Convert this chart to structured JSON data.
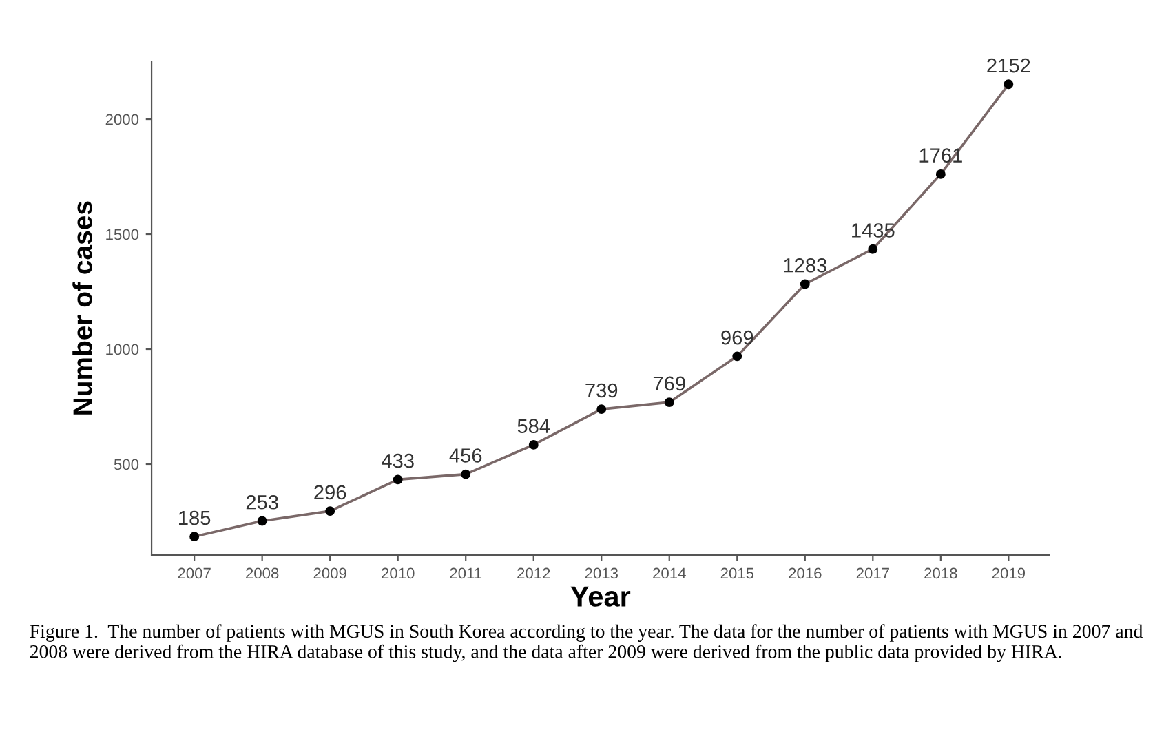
{
  "chart_data": {
    "type": "line",
    "xlabel": "Year",
    "ylabel": "Number of cases",
    "x": [
      2007,
      2008,
      2009,
      2010,
      2011,
      2012,
      2013,
      2014,
      2015,
      2016,
      2017,
      2018,
      2019
    ],
    "series": [
      {
        "color": "#7a6868",
        "values": [
          185,
          253,
          296,
          433,
          456,
          584,
          739,
          769,
          969,
          1283,
          1435,
          1761,
          2152
        ]
      }
    ],
    "xlim": [
      2006.37,
      2019.6
    ],
    "xticks": [
      2007,
      2008,
      2009,
      2010,
      2011,
      2012,
      2013,
      2014,
      2015,
      2016,
      2017,
      2018,
      2019
    ],
    "ylim": [
      105,
      2250
    ],
    "yticks": [
      500,
      1000,
      1500,
      2000
    ],
    "grid": false,
    "marker": "circle",
    "line_style": "solid",
    "data_labels": true,
    "annotations": [
      "Figure 1.  The number of patients with MGUS in South Korea according to the year. The data for the number of patients with MGUS in 2007 and 2008 were derived from the HIRA database of this study, and the data after 2009 were derived from the public data provided by HIRA."
    ]
  }
}
